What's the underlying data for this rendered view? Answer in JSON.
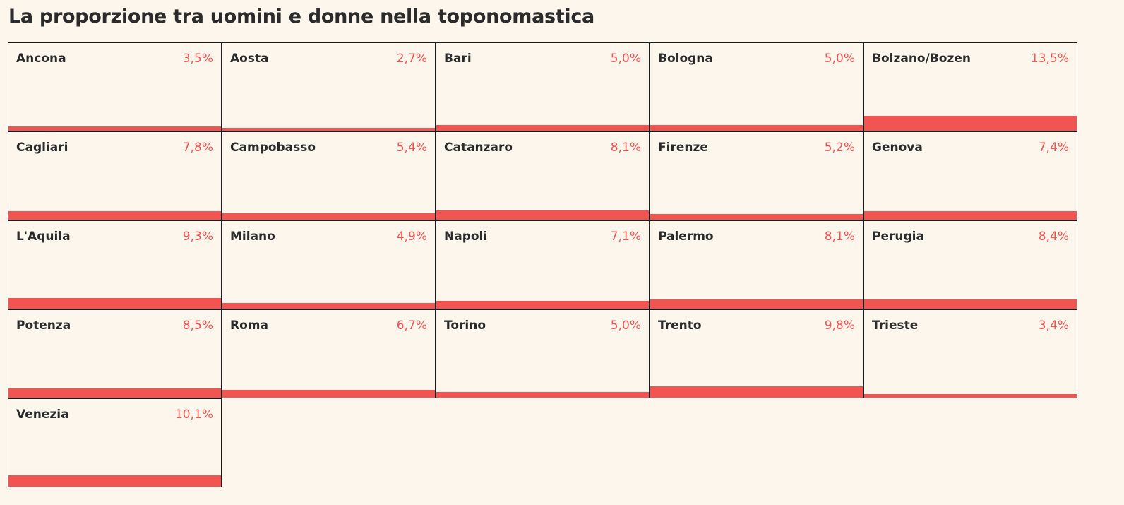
{
  "title": "La proporzione tra uomini e donne nella toponomastica",
  "colors": {
    "background": "#fcf6ec",
    "accent": "#f25451",
    "text": "#2b2b2b",
    "border": "#1d1d1d"
  },
  "chart_data": {
    "type": "bar",
    "title": "La proporzione tra uomini e donne nella toponomastica",
    "layout": "small-multiples-grid",
    "columns": 5,
    "ylim": [
      0,
      100
    ],
    "categories": [
      "Ancona",
      "Aosta",
      "Bari",
      "Bologna",
      "Bolzano/Bozen",
      "Cagliari",
      "Campobasso",
      "Catanzaro",
      "Firenze",
      "Genova",
      "L'Aquila",
      "Milano",
      "Napoli",
      "Palermo",
      "Perugia",
      "Potenza",
      "Roma",
      "Torino",
      "Trento",
      "Trieste",
      "Venezia"
    ],
    "values": [
      3.5,
      2.7,
      5.0,
      5.0,
      13.5,
      7.8,
      5.4,
      8.1,
      5.2,
      7.4,
      9.3,
      4.9,
      7.1,
      8.1,
      8.4,
      8.5,
      6.7,
      5.0,
      9.8,
      3.4,
      10.1
    ],
    "value_labels": [
      "3,5%",
      "2,7%",
      "5,0%",
      "5,0%",
      "13,5%",
      "7,8%",
      "5,4%",
      "8,1%",
      "5,2%",
      "7,4%",
      "9,3%",
      "4,9%",
      "7,1%",
      "8,1%",
      "8,4%",
      "8,5%",
      "6,7%",
      "5,0%",
      "9,8%",
      "3,4%",
      "10,1%"
    ]
  }
}
